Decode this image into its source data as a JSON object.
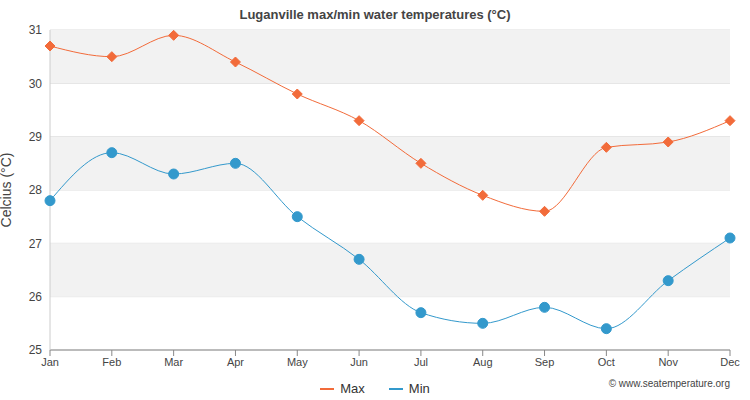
{
  "chart_data": {
    "type": "line",
    "title": "Luganville max/min water temperatures (°C)",
    "y_label": "Celcius (°C)",
    "annotation": "© www.seatemperature.org",
    "categories": [
      "Jan",
      "Feb",
      "Mar",
      "Apr",
      "May",
      "Jun",
      "Jul",
      "Aug",
      "Sep",
      "Oct",
      "Nov",
      "Dec"
    ],
    "series": [
      {
        "name": "Max",
        "color": "#f26b3a",
        "marker": "diamond",
        "values": [
          30.7,
          30.5,
          30.9,
          30.4,
          29.8,
          29.3,
          28.5,
          27.9,
          27.6,
          28.8,
          28.9,
          29.3
        ]
      },
      {
        "name": "Min",
        "color": "#3399cc",
        "marker": "circle",
        "values": [
          27.8,
          28.7,
          28.3,
          28.5,
          27.5,
          26.7,
          25.7,
          25.5,
          25.8,
          25.4,
          26.3,
          27.1
        ]
      }
    ],
    "ylim": [
      25,
      31
    ],
    "yticks": [
      25,
      26,
      27,
      28,
      29,
      30,
      31
    ],
    "grid": true,
    "legend": "bottom"
  }
}
